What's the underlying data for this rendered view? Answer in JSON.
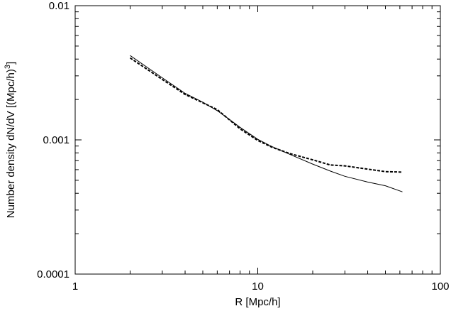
{
  "chart_data": {
    "type": "line",
    "title": "",
    "xlabel": "R [Mpc/h]",
    "ylabel_main": "Number density dN/dV [(Mpc/h)",
    "ylabel_sup": "3",
    "ylabel_close": "]",
    "xscale": "log",
    "yscale": "log",
    "xlim": [
      1,
      100
    ],
    "ylim": [
      0.0001,
      0.01
    ],
    "grid": false,
    "legend": "none",
    "x_ticks": [
      {
        "value": 1,
        "label": "1"
      },
      {
        "value": 10,
        "label": "10"
      },
      {
        "value": 100,
        "label": "100"
      }
    ],
    "y_ticks": [
      {
        "value": 0.0001,
        "label": "0.0001"
      },
      {
        "value": 0.001,
        "label": "0.001"
      },
      {
        "value": 0.01,
        "label": "0.01"
      }
    ],
    "series": [
      {
        "style": "solid",
        "color": "#000000",
        "x": [
          2,
          3,
          4,
          5,
          6,
          7,
          8,
          10,
          12,
          15,
          20,
          25,
          30,
          40,
          50,
          62
        ],
        "y": [
          0.00425,
          0.0029,
          0.00222,
          0.00191,
          0.00165,
          0.00142,
          0.00124,
          0.00101,
          0.00089,
          0.00078,
          0.00066,
          0.000585,
          0.000535,
          0.000485,
          0.000455,
          0.00041
        ]
      },
      {
        "style": "dashed",
        "color": "#000000",
        "x": [
          2,
          3,
          4,
          5,
          6,
          7,
          8,
          10,
          12,
          15,
          20,
          25,
          30,
          40,
          50,
          62
        ],
        "y": [
          0.00408,
          0.00282,
          0.00218,
          0.00189,
          0.00168,
          0.00141,
          0.00121,
          0.00099,
          0.00088,
          0.00079,
          0.00071,
          0.00065,
          0.00064,
          0.000605,
          0.00058,
          0.000575
        ]
      }
    ]
  }
}
